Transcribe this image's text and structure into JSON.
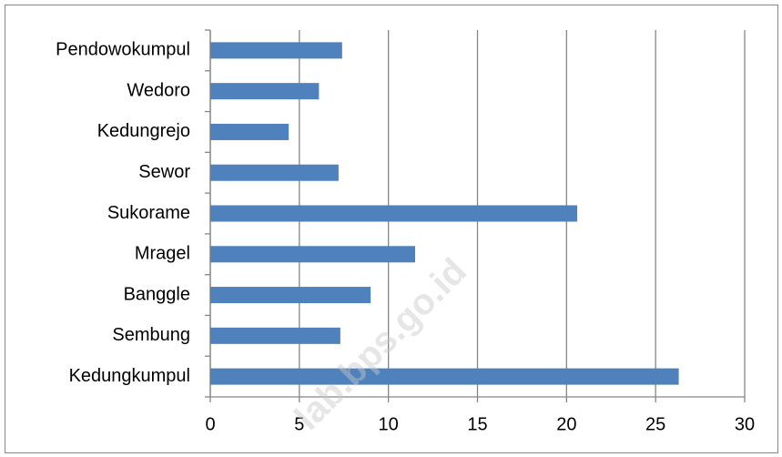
{
  "chart_data": {
    "type": "bar",
    "orientation": "horizontal",
    "categories": [
      "Pendowokumpul",
      "Wedoro",
      "Kedungrejo",
      "Sewor",
      "Sukorame",
      "Mragel",
      "Banggle",
      "Sembung",
      "Kedungkumpul"
    ],
    "values": [
      7.4,
      6.1,
      4.4,
      7.2,
      20.6,
      11.5,
      9.0,
      7.3,
      26.3
    ],
    "color": "#4f81bd",
    "xlim": [
      0,
      30
    ],
    "xticks": [
      0,
      5,
      10,
      15,
      20,
      25,
      30
    ],
    "grid": true,
    "watermark": "lab.bps.go.id"
  }
}
